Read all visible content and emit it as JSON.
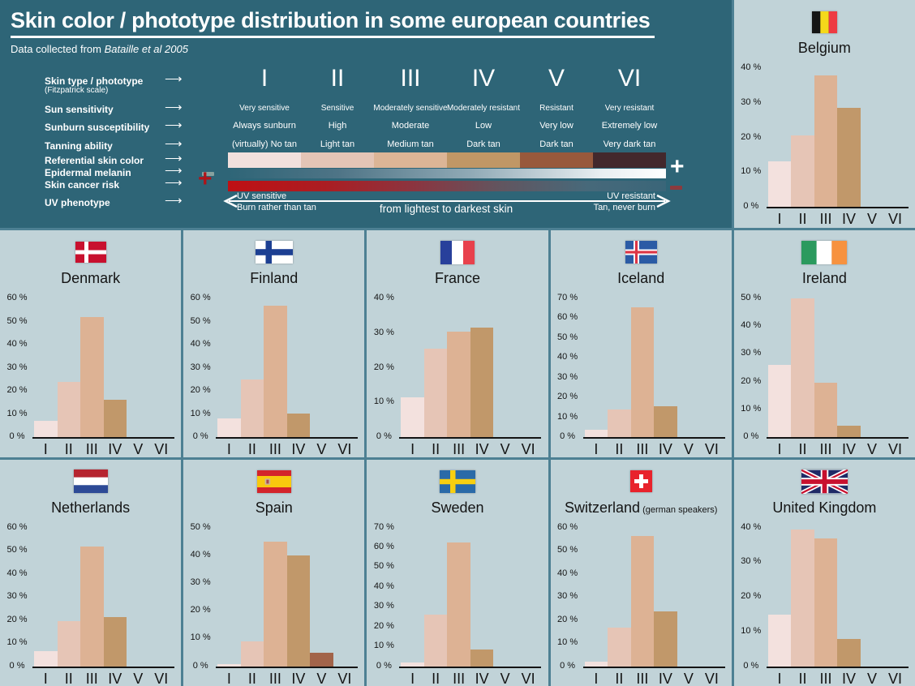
{
  "header": {
    "title": "Skin color / phototype distribution in some european countries",
    "subtitle_prefix": "Data collected from ",
    "subtitle_source": "Bataille et al 2005",
    "row_labels": [
      "Skin type / phototype",
      "Sun sensitivity",
      "Sunburn susceptibility",
      "Tanning ability",
      "Referential skin color",
      "Epidermal melanin",
      "Skin cancer risk",
      "UV phenotype"
    ],
    "fitzpatrick_note": "(Fitzpatrick scale)",
    "phototypes": [
      "I",
      "II",
      "III",
      "IV",
      "V",
      "VI"
    ],
    "sun_sensitivity": [
      "Very sensitive",
      "Sensitive",
      "Moderately sensitive",
      "Moderately resistant",
      "Resistant",
      "Very resistant"
    ],
    "sunburn_susceptibility": [
      "Always sunburn",
      "High",
      "Moderate",
      "Low",
      "Very low",
      "Extremely low"
    ],
    "tanning_ability": [
      "(virtually) No tan",
      "Light tan",
      "Medium tan",
      "Dark tan",
      "Dark tan",
      "Very dark tan"
    ],
    "referential_skin_colors": [
      "#f2e0dd",
      "#e4c5b6",
      "#dcb596",
      "#c09766",
      "#98593c",
      "#43282c"
    ],
    "melanin_minus": "−",
    "melanin_plus": "+",
    "cancer_plus": "+",
    "cancer_minus": "−",
    "uv_phenotype": {
      "left_top": "UV sensitive",
      "left_bottom": "Burn rather than tan",
      "center": "from lightest to darkest skin",
      "right_top": "UV resistant",
      "right_bottom": "Tan, never burn"
    }
  },
  "chart_data": [
    {
      "type": "bar",
      "country": "Belgium",
      "suffix": "",
      "flag": "belgium",
      "categories": [
        "I",
        "II",
        "III",
        "IV",
        "V",
        "VI"
      ],
      "values": [
        13,
        20.5,
        38,
        28.5,
        0,
        0
      ],
      "ylim": [
        0,
        40
      ],
      "ytick_step": 10,
      "ytick_suffix": " %",
      "grid": false
    },
    {
      "type": "bar",
      "country": "Denmark",
      "suffix": "",
      "flag": "denmark",
      "categories": [
        "I",
        "II",
        "III",
        "IV",
        "V",
        "VI"
      ],
      "values": [
        7,
        24,
        52,
        16,
        0,
        0
      ],
      "ylim": [
        0,
        60
      ],
      "ytick_step": 10,
      "ytick_suffix": " %",
      "grid": false
    },
    {
      "type": "bar",
      "country": "Finland",
      "suffix": "",
      "flag": "finland",
      "categories": [
        "I",
        "II",
        "III",
        "IV",
        "V",
        "VI"
      ],
      "values": [
        8,
        25,
        57,
        10,
        0,
        0
      ],
      "ylim": [
        0,
        60
      ],
      "ytick_step": 10,
      "ytick_suffix": " %",
      "grid": false
    },
    {
      "type": "bar",
      "country": "France",
      "suffix": "",
      "flag": "france",
      "categories": [
        "I",
        "II",
        "III",
        "IV",
        "V",
        "VI"
      ],
      "values": [
        11.5,
        25.5,
        30.5,
        31.5,
        0,
        0
      ],
      "ylim": [
        0,
        40
      ],
      "ytick_step": 10,
      "ytick_suffix": " %",
      "grid": false
    },
    {
      "type": "bar",
      "country": "Iceland",
      "suffix": "",
      "flag": "iceland",
      "categories": [
        "I",
        "II",
        "III",
        "IV",
        "V",
        "VI"
      ],
      "values": [
        3.5,
        14,
        65.5,
        15.5,
        0,
        0
      ],
      "ylim": [
        0,
        70
      ],
      "ytick_step": 10,
      "ytick_suffix": " %",
      "grid": false
    },
    {
      "type": "bar",
      "country": "Ireland",
      "suffix": "",
      "flag": "ireland",
      "categories": [
        "I",
        "II",
        "III",
        "IV",
        "V",
        "VI"
      ],
      "values": [
        26,
        50,
        19.5,
        4,
        0,
        0
      ],
      "ylim": [
        0,
        50
      ],
      "ytick_step": 10,
      "ytick_suffix": " %",
      "grid": false
    },
    {
      "type": "bar",
      "country": "Netherlands",
      "suffix": "",
      "flag": "netherlands",
      "categories": [
        "I",
        "II",
        "III",
        "IV",
        "V",
        "VI"
      ],
      "values": [
        6.5,
        19.5,
        52,
        21.5,
        0,
        0
      ],
      "ylim": [
        0,
        60
      ],
      "ytick_step": 10,
      "ytick_suffix": " %",
      "grid": false
    },
    {
      "type": "bar",
      "country": "Spain",
      "suffix": "",
      "flag": "spain",
      "categories": [
        "I",
        "II",
        "III",
        "IV",
        "V",
        "VI"
      ],
      "values": [
        1,
        9,
        45,
        40,
        5,
        0
      ],
      "ylim": [
        0,
        50
      ],
      "ytick_step": 10,
      "ytick_suffix": " %",
      "grid": false
    },
    {
      "type": "bar",
      "country": "Sweden",
      "suffix": "",
      "flag": "sweden",
      "categories": [
        "I",
        "II",
        "III",
        "IV",
        "V",
        "VI"
      ],
      "values": [
        2,
        26,
        62.5,
        8.5,
        0,
        0
      ],
      "ylim": [
        0,
        70
      ],
      "ytick_step": 10,
      "ytick_suffix": " %",
      "grid": false
    },
    {
      "type": "bar",
      "country": "Switzerland",
      "suffix": "(german speakers)",
      "flag": "switzerland",
      "categories": [
        "I",
        "II",
        "III",
        "IV",
        "V",
        "VI"
      ],
      "values": [
        2,
        17,
        56.5,
        24,
        0,
        0
      ],
      "ylim": [
        0,
        60
      ],
      "ytick_step": 10,
      "ytick_suffix": " %",
      "grid": false
    },
    {
      "type": "bar",
      "country": "United Kingdom",
      "suffix": "",
      "flag": "uk",
      "categories": [
        "I",
        "II",
        "III",
        "IV",
        "V",
        "VI"
      ],
      "values": [
        15,
        39.5,
        37,
        8,
        0,
        0
      ],
      "ylim": [
        0,
        40
      ],
      "ytick_step": 10,
      "ytick_suffix": " %",
      "grid": false
    }
  ],
  "colors": {
    "header_bg": "#2e6577",
    "panel_bg": "#c1d3d8",
    "border": "#4d8093",
    "axis": "#141414",
    "bar_colors": [
      "#f3e1de",
      "#e6c5b6",
      "#ddb294",
      "#c1986a",
      "#a2644a",
      "#43282c"
    ]
  }
}
